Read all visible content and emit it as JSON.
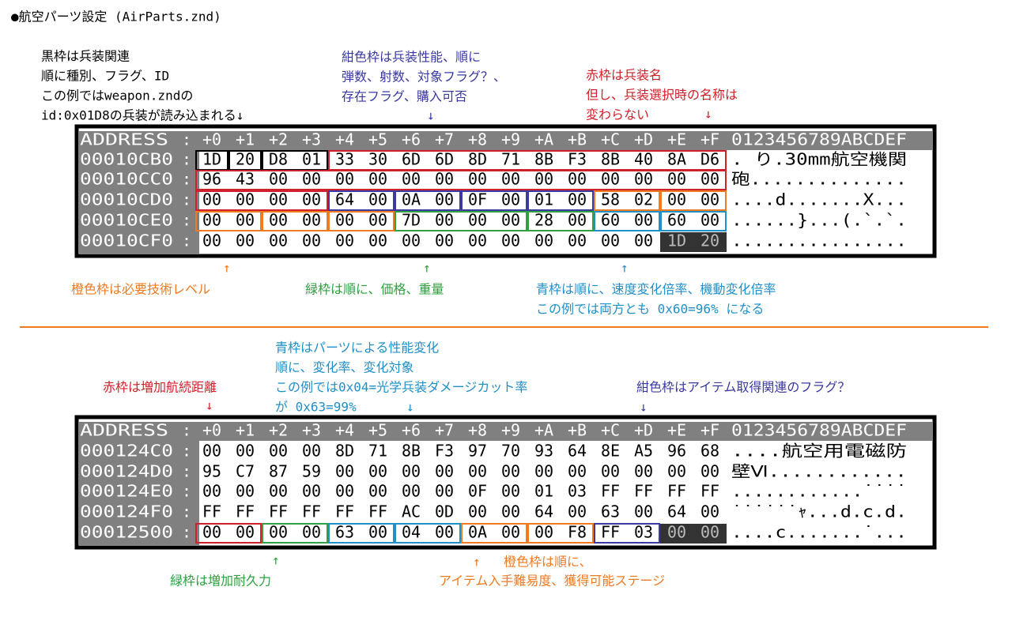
{
  "title": "●航空パーツ設定 (AirParts.znd)",
  "annotations": [
    {
      "lines": [
        "黒枠は兵装関連",
        "順に種別、フラグ、ID",
        "この例ではweapon.zndの",
        "id:0x01D8の兵装が読み込まれる↓"
      ]
    },
    {
      "lines": [
        "紺色枠は兵装性能、順に",
        "弾数、射数、対象フラグ？、",
        "存在フラグ、購入可否"
      ]
    },
    {
      "lines": [
        "↓"
      ]
    },
    {
      "lines": [
        "赤枠は兵装名",
        "但し、兵装選択時の名称は",
        "変わらない"
      ]
    },
    {
      "lines": [
        "↓"
      ]
    },
    {
      "lines": [
        "↑"
      ]
    },
    {
      "lines": [
        "橙色枠は必要技術レベル"
      ]
    },
    {
      "lines": [
        "↑"
      ]
    },
    {
      "lines": [
        "緑枠は順に、価格、重量"
      ]
    },
    {
      "lines": [
        "↑"
      ]
    },
    {
      "lines": [
        "青枠は順に、速度変化倍率、機動変化倍率",
        "この例では両方とも 0x60=96% になる"
      ]
    },
    {
      "lines": [
        "青枠はパーツによる性能変化",
        "順に、変化率、変化対象",
        "この例では0x04=光学兵装ダメージカット率",
        "が 0x63=99%"
      ]
    },
    {
      "lines": [
        "↓"
      ]
    },
    {
      "lines": [
        "赤枠は増加航続距離"
      ]
    },
    {
      "lines": [
        "↓"
      ]
    },
    {
      "lines": [
        "紺色枠はアイテム取得関連のフラグ？"
      ]
    },
    {
      "lines": [
        "↓"
      ]
    },
    {
      "lines": [
        "↑"
      ]
    },
    {
      "lines": [
        "緑枠は増加耐久力"
      ]
    },
    {
      "lines": [
        "↑"
      ]
    },
    {
      "lines": [
        "橙色枠は順に、"
      ]
    },
    {
      "lines": [
        "アイテム入手難易度、獲得可能ステージ"
      ]
    }
  ],
  "dumps": [
    {
      "header": [
        "ADDRESS",
        ":",
        "+0",
        "+1",
        "+2",
        "+3",
        "+4",
        "+5",
        "+6",
        "+7",
        "+8",
        "+9",
        "+A",
        "+B",
        "+C",
        "+D",
        "+E",
        "+F",
        "0123456789ABCDEF"
      ],
      "separator": ":",
      "rows": [
        {
          "address": "00010CB0",
          "bytes": [
            "1D",
            "20",
            "D8",
            "01",
            "33",
            "30",
            "6D",
            "6D",
            "8D",
            "71",
            "8B",
            "F3",
            "8B",
            "40",
            "8A",
            "D6"
          ],
          "ascii": ". り.30mm航空機関"
        },
        {
          "address": "00010CC0",
          "bytes": [
            "96",
            "43",
            "00",
            "00",
            "00",
            "00",
            "00",
            "00",
            "00",
            "00",
            "00",
            "00",
            "00",
            "00",
            "00",
            "00"
          ],
          "ascii": "砲.............."
        },
        {
          "address": "00010CD0",
          "bytes": [
            "00",
            "00",
            "00",
            "00",
            "64",
            "00",
            "0A",
            "00",
            "0F",
            "00",
            "01",
            "00",
            "58",
            "02",
            "00",
            "00"
          ],
          "ascii": "....d.......X..."
        },
        {
          "address": "00010CE0",
          "bytes": [
            "00",
            "00",
            "00",
            "00",
            "00",
            "00",
            "7D",
            "00",
            "00",
            "00",
            "28",
            "00",
            "60",
            "00",
            "60",
            "00"
          ],
          "ascii": "......}...(.`.`."
        },
        {
          "address": "00010CF0",
          "bytes": [
            "00",
            "00",
            "00",
            "00",
            "00",
            "00",
            "00",
            "00",
            "00",
            "00",
            "00",
            "00",
            "00",
            "00",
            "1D",
            "20"
          ],
          "ascii": "................"
        }
      ]
    },
    {
      "header": [
        "ADDRESS",
        ":",
        "+0",
        "+1",
        "+2",
        "+3",
        "+4",
        "+5",
        "+6",
        "+7",
        "+8",
        "+9",
        "+A",
        "+B",
        "+C",
        "+D",
        "+E",
        "+F",
        "0123456789ABCDEF"
      ],
      "separator": ":",
      "rows": [
        {
          "address": "000124C0",
          "bytes": [
            "00",
            "00",
            "00",
            "00",
            "8D",
            "71",
            "8B",
            "F3",
            "97",
            "70",
            "93",
            "64",
            "8E",
            "A5",
            "96",
            "68"
          ],
          "ascii": "....航空用電磁防"
        },
        {
          "address": "000124D0",
          "bytes": [
            "95",
            "C7",
            "87",
            "59",
            "00",
            "00",
            "00",
            "00",
            "00",
            "00",
            "00",
            "00",
            "00",
            "00",
            "00",
            "00"
          ],
          "ascii": "壁Ⅵ............"
        },
        {
          "address": "000124E0",
          "bytes": [
            "00",
            "00",
            "00",
            "00",
            "00",
            "00",
            "00",
            "00",
            "0F",
            "00",
            "01",
            "03",
            "FF",
            "FF",
            "FF",
            "FF"
          ],
          "ascii": "............˙˙˙˙"
        },
        {
          "address": "000124F0",
          "bytes": [
            "FF",
            "FF",
            "FF",
            "FF",
            "FF",
            "FF",
            "AC",
            "0D",
            "00",
            "00",
            "64",
            "00",
            "63",
            "00",
            "64",
            "00"
          ],
          "ascii": "˙˙˙˙˙˙ｬ...d.c.d."
        },
        {
          "address": "00012500",
          "bytes": [
            "00",
            "00",
            "00",
            "00",
            "63",
            "00",
            "04",
            "00",
            "0A",
            "00",
            "00",
            "F8",
            "FF",
            "03",
            "00",
            "00"
          ],
          "ascii": "....c.......˙..."
        }
      ]
    }
  ]
}
